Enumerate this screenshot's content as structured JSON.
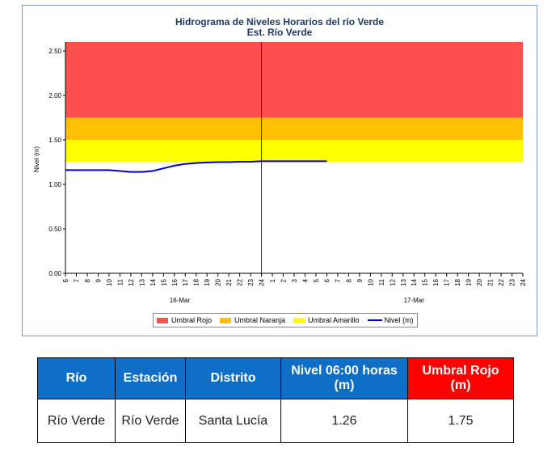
{
  "chart_data": {
    "type": "line",
    "title": "Hidrograma de Niveles Horarios del río Verde",
    "subtitle": "Est. Río Verde",
    "ylabel": "Nivel (m)",
    "ylim": [
      0,
      2.6
    ],
    "yticks": [
      "0.00",
      "0.50",
      "1.00",
      "1.50",
      "2.00",
      "2.50"
    ],
    "xticks": [
      "6",
      "7",
      "8",
      "9",
      "10",
      "11",
      "12",
      "13",
      "14",
      "15",
      "16",
      "17",
      "18",
      "19",
      "20",
      "21",
      "22",
      "23",
      "24",
      "1",
      "2",
      "3",
      "4",
      "5",
      "6",
      "7",
      "8",
      "9",
      "10",
      "11",
      "12",
      "13",
      "14",
      "15",
      "16",
      "17",
      "18",
      "19",
      "20",
      "21",
      "22",
      "23",
      "24"
    ],
    "date_labels": [
      {
        "label": "16-Mar",
        "at_tick": 10.5
      },
      {
        "label": "17-Mar",
        "at_tick": 32
      }
    ],
    "day_divider_tick": 18,
    "threshold_bands": [
      {
        "name": "Umbral Amarillo",
        "from": 1.25,
        "to": 1.5,
        "color": "#ffff00"
      },
      {
        "name": "Umbral Naranja",
        "from": 1.5,
        "to": 1.75,
        "color": "#ffc000"
      },
      {
        "name": "Umbral Rojo",
        "from": 1.75,
        "to": 2.6,
        "color": "#ff5050"
      }
    ],
    "series": [
      {
        "name": "Nivel (m)",
        "color": "#0000cc",
        "values": [
          1.16,
          1.16,
          1.16,
          1.16,
          1.16,
          1.15,
          1.14,
          1.14,
          1.15,
          1.18,
          1.21,
          1.23,
          1.24,
          1.245,
          1.25,
          1.25,
          1.255,
          1.255,
          1.26,
          1.26,
          1.26,
          1.26,
          1.26,
          1.26,
          1.26
        ]
      }
    ],
    "legend": {
      "position": "bottom",
      "entries": [
        {
          "label": "Umbral Rojo",
          "color": "#ff5050",
          "kind": "box"
        },
        {
          "label": "Umbral Naranja",
          "color": "#ffc000",
          "kind": "box"
        },
        {
          "label": "Umbral Amarillo",
          "color": "#ffff00",
          "kind": "box"
        },
        {
          "label": "Nivel (m)",
          "color": "#0000cc",
          "kind": "line"
        }
      ]
    }
  },
  "table": {
    "headers": [
      "Río",
      "Estación",
      "Distrito",
      "Nivel 06:00 horas (m)",
      "Umbral Rojo (m)"
    ],
    "row": [
      "Río Verde",
      "Río Verde",
      "Santa Lucía",
      "1.26",
      "1.75"
    ]
  }
}
